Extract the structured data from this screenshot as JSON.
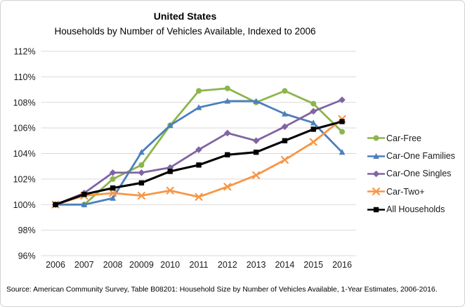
{
  "figure": {
    "title": "United States",
    "subtitle": "Households by Number of Vehicles Available, Indexed to 2006",
    "source_note": "Source: American Community Survey, Table B08201: Household Size by Number of Vehicles Available, 1-Year Estimates, 2006-2016."
  },
  "chart_data": {
    "type": "line",
    "title": "United States",
    "subtitle": "Households by Number of Vehicles Available, Indexed to 2006",
    "categories": [
      "2006",
      "2007",
      "2008",
      "20009",
      "2010",
      "2011",
      "2012",
      "2013",
      "2014",
      "2015",
      "2016"
    ],
    "series": [
      {
        "name": "Car-Free",
        "color": "#8DB54B",
        "marker": "circle",
        "values": [
          100.0,
          100.0,
          102.0,
          103.1,
          106.2,
          108.9,
          109.1,
          108.0,
          108.9,
          107.9,
          105.7
        ]
      },
      {
        "name": "Car-One Families",
        "color": "#4A80BD",
        "marker": "triangle",
        "values": [
          100.0,
          100.0,
          100.5,
          104.1,
          106.2,
          107.6,
          108.1,
          108.1,
          107.1,
          106.4,
          104.1
        ]
      },
      {
        "name": "Car-One Singles",
        "color": "#8064A2",
        "marker": "diamond",
        "values": [
          100.0,
          100.9,
          102.5,
          102.5,
          102.9,
          104.3,
          105.6,
          105.0,
          106.1,
          107.3,
          108.2
        ]
      },
      {
        "name": "Car-Two+",
        "color": "#F79646",
        "marker": "x",
        "values": [
          100.0,
          100.7,
          100.9,
          100.7,
          101.1,
          100.6,
          101.4,
          102.3,
          103.5,
          104.9,
          106.7
        ]
      },
      {
        "name": "All Households",
        "color": "#000000",
        "marker": "square",
        "values": [
          100.0,
          100.8,
          101.3,
          101.7,
          102.6,
          103.1,
          103.9,
          104.1,
          105.0,
          105.9,
          106.5
        ]
      }
    ],
    "ylim": [
      96,
      112
    ],
    "ytick_step": 2,
    "ytick_labels": [
      "96%",
      "98%",
      "100%",
      "102%",
      "104%",
      "106%",
      "108%",
      "110%",
      "112%"
    ],
    "xlabel": "",
    "ylabel": "",
    "grid": "horizontal",
    "gridline_color": "#D9D9D9",
    "legend_position": "right"
  }
}
